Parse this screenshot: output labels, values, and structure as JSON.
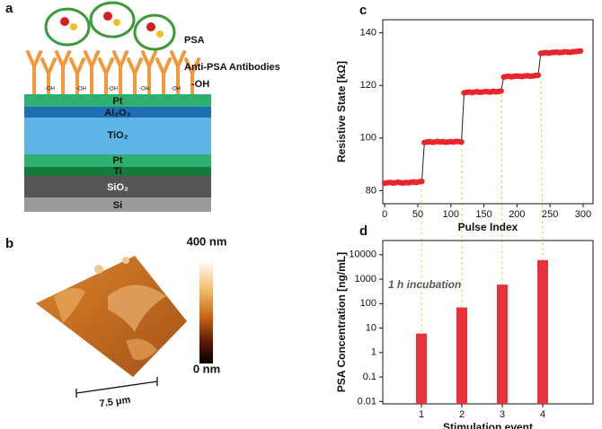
{
  "diagram": {
    "label": "a",
    "protein": "PSA",
    "antibodies": "Anti-PSA Antibodies",
    "hydroxyl": "-OH",
    "surface_labels": [
      "-OH",
      "-OH",
      "-OH",
      "-OH",
      "-OH"
    ],
    "layers": [
      "Pt",
      "Al₂O₃",
      "TiO₂",
      "Pt",
      "Ti",
      "SiO₂",
      "Si"
    ]
  },
  "afm": {
    "label": "b",
    "scale_max": "400 nm",
    "scale_min": "0 nm",
    "scale_bar": "7.5 μm"
  },
  "chart_data": [
    {
      "type": "scatter",
      "panel": "c",
      "connect": true,
      "color": "#e8242c",
      "line_color": "#222222",
      "xlabel": "Pulse Index",
      "ylabel": "Resistive State [kΩ]",
      "x": [
        0,
        4,
        8,
        12,
        16,
        20,
        24,
        28,
        32,
        36,
        40,
        44,
        48,
        52,
        56,
        60,
        64,
        68,
        72,
        76,
        80,
        84,
        88,
        92,
        96,
        100,
        104,
        108,
        112,
        116,
        120,
        124,
        128,
        132,
        136,
        140,
        144,
        148,
        152,
        156,
        160,
        164,
        168,
        172,
        176,
        180,
        184,
        188,
        192,
        196,
        200,
        204,
        208,
        212,
        216,
        220,
        224,
        228,
        232,
        236,
        240,
        244,
        248,
        252,
        256,
        260,
        264,
        268,
        272,
        276,
        280,
        284,
        288,
        292,
        296
      ],
      "y": [
        82.8,
        83,
        83.1,
        82.9,
        83,
        83.2,
        83,
        82.9,
        83.1,
        83,
        83.2,
        83.3,
        83.1,
        83.4,
        83.5,
        98.3,
        98.5,
        98.6,
        98.4,
        98.5,
        98.7,
        98.5,
        98.6,
        98.4,
        98.5,
        98.6,
        98.5,
        98.7,
        98.6,
        98.5,
        117.2,
        117.4,
        117.5,
        117.3,
        117.5,
        117.6,
        117.4,
        117.5,
        117.7,
        117.6,
        117.5,
        117.8,
        117.6,
        117.7,
        117.9,
        123.2,
        123.4,
        123.5,
        123.3,
        123.5,
        123.6,
        123.5,
        123.4,
        123.6,
        123.7,
        123.5,
        123.6,
        123.8,
        123.9,
        132.2,
        132.4,
        132.5,
        132.3,
        132.5,
        132.6,
        132.7,
        132.5,
        132.6,
        132.8,
        132.7,
        132.6,
        132.8,
        132.9,
        133,
        133.1
      ],
      "xlim": [
        -3,
        315
      ],
      "xticks": [
        0,
        50,
        100,
        150,
        200,
        250,
        300
      ],
      "ylim": [
        75,
        145
      ],
      "yticks": [
        80,
        100,
        120,
        140
      ]
    },
    {
      "type": "bar",
      "panel": "d",
      "color": "#e8333c",
      "yscale": "log",
      "annotation": "1 h incubation",
      "xlabel": "Stimulation event",
      "ylabel": "PSA Concentration [ng/mL]",
      "categories": [
        "1",
        "2",
        "3",
        "4"
      ],
      "values": [
        6,
        70,
        600,
        6000
      ],
      "ylim": [
        0.008,
        38000
      ],
      "yticks": [
        0.01,
        0.1,
        1,
        10,
        100,
        1000,
        10000
      ]
    }
  ]
}
